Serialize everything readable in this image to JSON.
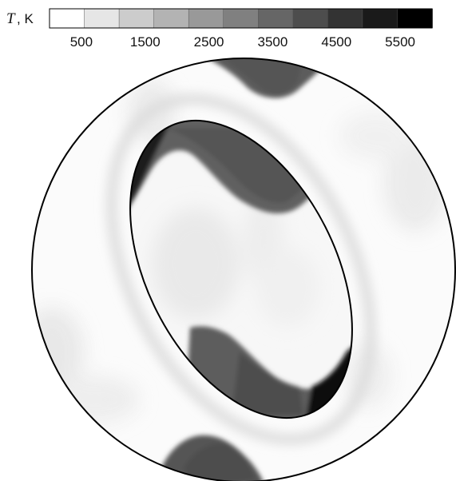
{
  "colorbar": {
    "symbol": "T",
    "unit": ", K",
    "ticks": [
      "500",
      "1500",
      "2500",
      "3500",
      "4500",
      "5500"
    ],
    "min": 0,
    "max": 6000,
    "segments": 11,
    "colormap": [
      "#ffffff",
      "#000000"
    ]
  },
  "colors": {
    "outline": "#000000",
    "background": "#ffffff"
  }
}
